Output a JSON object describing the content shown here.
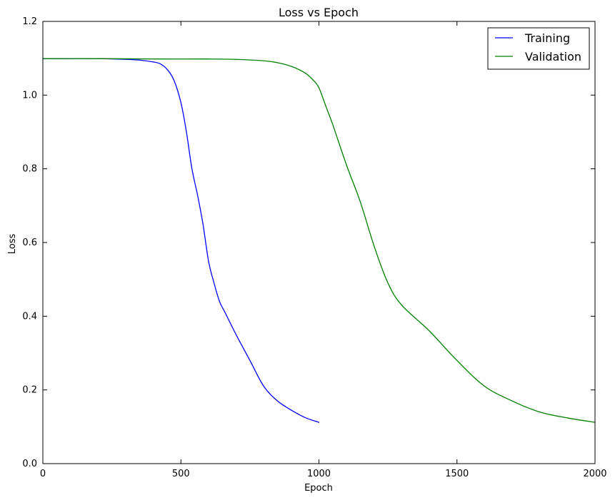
{
  "chart_data": {
    "type": "line",
    "title": "Loss vs Epoch",
    "xlabel": "Epoch",
    "ylabel": "Loss",
    "xlim": [
      0,
      2000
    ],
    "ylim": [
      0.0,
      1.2
    ],
    "x_ticks": [
      0,
      500,
      1000,
      1500,
      2000
    ],
    "y_ticks": [
      0.0,
      0.2,
      0.4,
      0.6,
      0.8,
      1.0,
      1.2
    ],
    "x_tick_labels": [
      "0",
      "500",
      "1000",
      "1500",
      "2000"
    ],
    "y_tick_labels": [
      "0.0",
      "0.2",
      "0.4",
      "0.6",
      "0.8",
      "1.0",
      "1.2"
    ],
    "grid": false,
    "legend": {
      "position": "top-right",
      "entries": [
        "Training",
        "Validation"
      ]
    },
    "series": [
      {
        "name": "Training",
        "color": "#0000ff",
        "x": [
          0,
          100,
          200,
          300,
          350,
          400,
          425,
          450,
          475,
          500,
          520,
          540,
          560,
          580,
          600,
          620,
          640,
          660,
          700,
          750,
          800,
          850,
          900,
          950,
          1000
        ],
        "y": [
          1.099,
          1.099,
          1.099,
          1.097,
          1.095,
          1.09,
          1.085,
          1.07,
          1.04,
          0.98,
          0.9,
          0.8,
          0.73,
          0.65,
          0.55,
          0.49,
          0.44,
          0.41,
          0.35,
          0.28,
          0.21,
          0.17,
          0.145,
          0.125,
          0.112
        ]
      },
      {
        "name": "Validation",
        "color": "#008000",
        "x": [
          0,
          200,
          400,
          600,
          700,
          800,
          850,
          900,
          950,
          980,
          1000,
          1025,
          1050,
          1100,
          1150,
          1200,
          1250,
          1300,
          1400,
          1500,
          1600,
          1700,
          1800,
          1900,
          2000
        ],
        "y": [
          1.099,
          1.099,
          1.098,
          1.098,
          1.097,
          1.093,
          1.088,
          1.078,
          1.06,
          1.04,
          1.02,
          0.97,
          0.92,
          0.81,
          0.71,
          0.59,
          0.49,
          0.43,
          0.36,
          0.28,
          0.21,
          0.17,
          0.14,
          0.124,
          0.112
        ]
      }
    ]
  }
}
